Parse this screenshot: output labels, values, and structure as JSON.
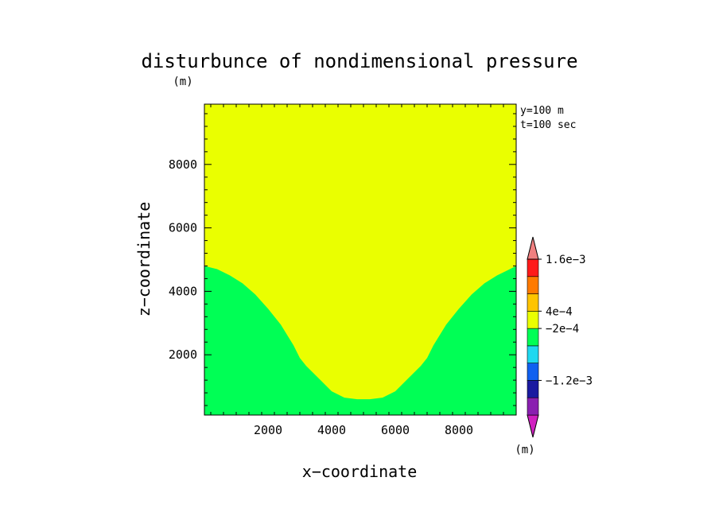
{
  "chart_data": {
    "type": "heatmap",
    "title": "disturbunce of nondimensional pressure",
    "title_unit": "(m)",
    "xlabel": "x−coordinate",
    "ylabel": "z−coordinate",
    "xlim": [
      0,
      9800
    ],
    "ylim": [
      100,
      9900
    ],
    "x_ticks": [
      2000,
      4000,
      6000,
      8000
    ],
    "x_tick_labels": [
      "2000",
      "4000",
      "6000",
      "8000"
    ],
    "y_ticks": [
      2000,
      4000,
      6000,
      8000
    ],
    "y_tick_labels": [
      "2000",
      "4000",
      "6000",
      "8000"
    ],
    "annotations": [
      "y=100 m",
      "t=100 sec"
    ],
    "colorbar": {
      "unit_label": "(m)",
      "colors": [
        "#d020c0",
        "#8a20b0",
        "#1a1aa0",
        "#1060f0",
        "#20d8f0",
        "#00ff55",
        "#eaff00",
        "#ffc400",
        "#ff7a00",
        "#ff1a1a",
        "#f08080"
      ],
      "labels": [
        {
          "text": "1.6e−3",
          "boundary": 9
        },
        {
          "text": "4e−4",
          "boundary": 6
        },
        {
          "text": "−2e−4",
          "boundary": 5
        },
        {
          "text": "−1.2e−3",
          "boundary": 2
        }
      ]
    },
    "regions": [
      {
        "color": "#eaff00",
        "description": "upper field"
      },
      {
        "color": "#00ff55",
        "description": "lower field (valley-shaped boundary)"
      }
    ],
    "boundary_curve": {
      "x": [
        0,
        400,
        800,
        1200,
        1600,
        2000,
        2400,
        2800,
        3000,
        3200,
        3600,
        4000,
        4400,
        4800,
        5000,
        5200,
        5600,
        6000,
        6400,
        6800,
        7000,
        7200,
        7600,
        8000,
        8400,
        8800,
        9200,
        9600,
        9800
      ],
      "z": [
        4800,
        4700,
        4500,
        4250,
        3900,
        3450,
        2950,
        2300,
        1900,
        1650,
        1250,
        850,
        650,
        600,
        600,
        600,
        650,
        850,
        1250,
        1650,
        1900,
        2300,
        2950,
        3450,
        3900,
        4250,
        4500,
        4700,
        4800
      ]
    }
  }
}
